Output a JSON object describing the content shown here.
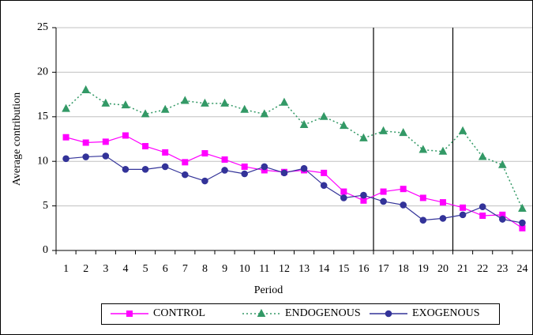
{
  "chart_data": {
    "type": "line",
    "x_label": "Period",
    "y_label": "Average contribution",
    "categories": [
      "1",
      "2",
      "3",
      "4",
      "5",
      "6",
      "7",
      "8",
      "9",
      "10",
      "11",
      "12",
      "13",
      "14",
      "15",
      "16",
      "17",
      "18",
      "19",
      "20",
      "21",
      "22",
      "23",
      "24"
    ],
    "series": [
      {
        "name": "CONTROL",
        "color": "#ff00ff",
        "marker": "square",
        "dash": "solid",
        "values": [
          12.7,
          12.1,
          12.2,
          12.9,
          11.7,
          11.0,
          9.9,
          10.9,
          10.2,
          9.4,
          9.0,
          8.8,
          9.0,
          8.7,
          6.6,
          5.6,
          6.6,
          6.9,
          5.9,
          5.4,
          4.8,
          3.9,
          4.0,
          2.5
        ]
      },
      {
        "name": "ENDOGENOUS",
        "color": "#339966",
        "marker": "triangle",
        "dash": "dotted",
        "values": [
          15.9,
          18.0,
          16.5,
          16.3,
          15.3,
          15.8,
          16.8,
          16.5,
          16.5,
          15.8,
          15.3,
          16.6,
          14.1,
          15.0,
          14.0,
          12.6,
          13.4,
          13.2,
          11.3,
          11.1,
          13.4,
          10.5,
          9.6,
          4.7
        ]
      },
      {
        "name": "EXOGENOUS",
        "color": "#333399",
        "marker": "circle",
        "dash": "solid",
        "values": [
          10.3,
          10.5,
          10.6,
          9.1,
          9.1,
          9.4,
          8.5,
          7.8,
          9.0,
          8.6,
          9.4,
          8.7,
          9.2,
          7.3,
          5.9,
          6.2,
          5.5,
          5.1,
          3.4,
          3.6,
          4.0,
          4.9,
          3.5,
          3.1
        ]
      }
    ],
    "ylim": [
      0,
      25
    ],
    "yticks": [
      0,
      5,
      10,
      15,
      20,
      25
    ],
    "grid": true,
    "legend": "bottom"
  }
}
